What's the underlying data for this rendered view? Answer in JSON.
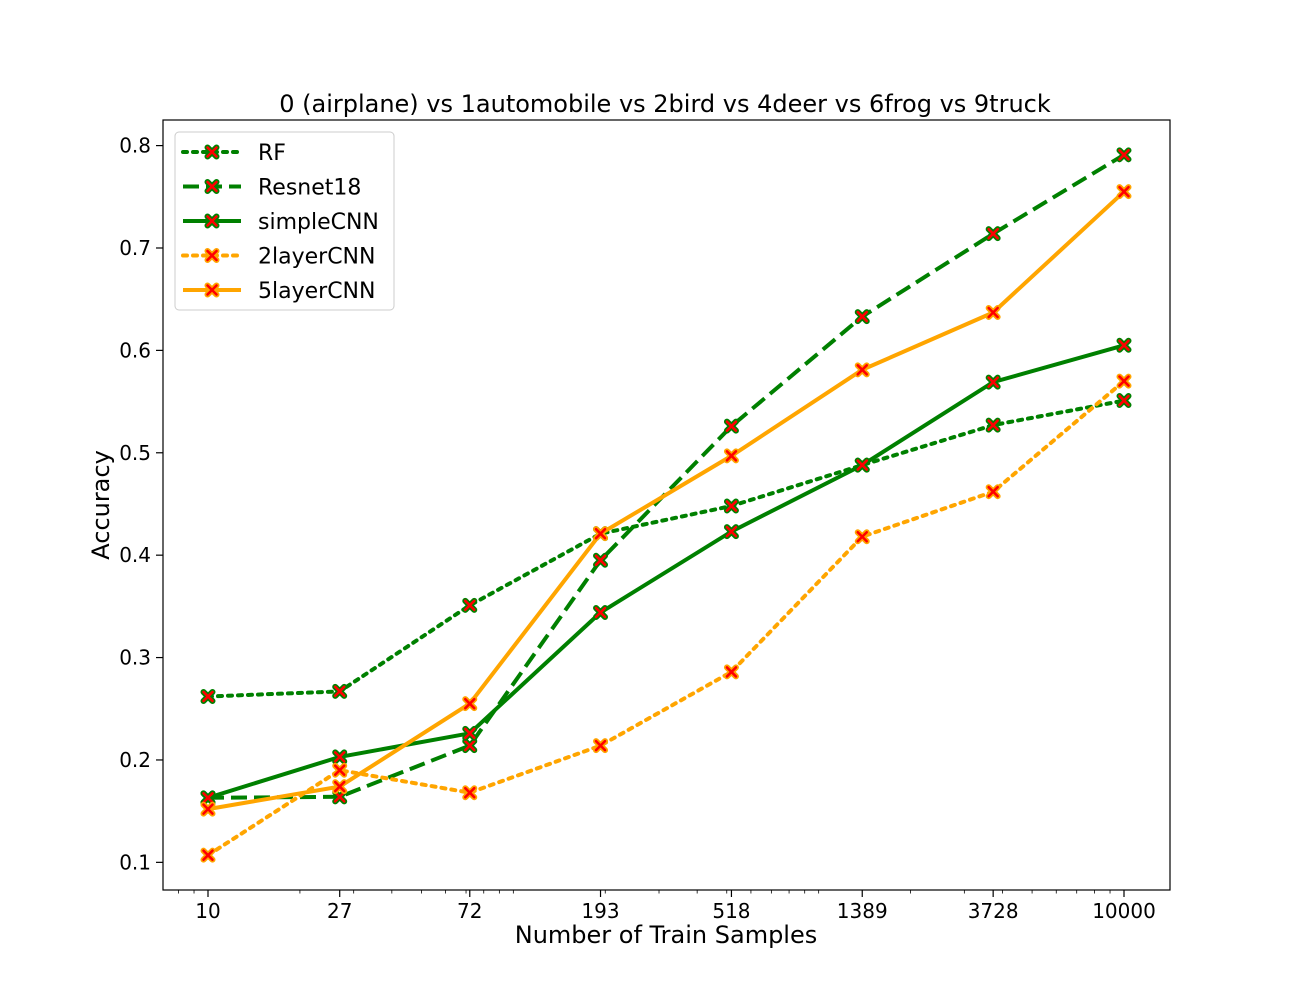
{
  "chart_data": {
    "type": "line",
    "title": "0 (airplane)  vs 1automobile vs 2bird vs 4deer vs 6frog vs 9truck",
    "xlabel": "Number of Train Samples",
    "ylabel": "Accuracy",
    "x_scale": "log",
    "x": [
      10,
      27,
      72,
      193,
      518,
      1389,
      3728,
      10000
    ],
    "x_tick_labels": [
      "10",
      "27",
      "72",
      "193",
      "518",
      "1389",
      "3728",
      "10000"
    ],
    "y_ticks": [
      0.1,
      0.2,
      0.3,
      0.4,
      0.5,
      0.6,
      0.7,
      0.8
    ],
    "y_tick_labels": [
      "0.1",
      "0.2",
      "0.3",
      "0.4",
      "0.5",
      "0.6",
      "0.7",
      "0.8"
    ],
    "ylim": [
      0.073,
      0.825
    ],
    "grid": false,
    "legend_position": "top-left",
    "series": [
      {
        "name": "RF",
        "color": "#008000",
        "dash": "dotted",
        "marker_color": "#008000",
        "values": [
          0.262,
          0.267,
          0.351,
          0.421,
          0.448,
          0.488,
          0.527,
          0.551
        ]
      },
      {
        "name": "Resnet18",
        "color": "#008000",
        "dash": "dashed",
        "marker_color": "#008000",
        "values": [
          0.163,
          0.164,
          0.214,
          0.395,
          0.526,
          0.633,
          0.714,
          0.791
        ]
      },
      {
        "name": "simpleCNN",
        "color": "#008000",
        "dash": "solid",
        "marker_color": "#008000",
        "values": [
          0.163,
          0.203,
          0.226,
          0.344,
          0.423,
          0.488,
          0.569,
          0.605
        ]
      },
      {
        "name": "2layerCNN",
        "color": "#ffa500",
        "dash": "dotted",
        "marker_color": "#ffa500",
        "values": [
          0.107,
          0.19,
          0.168,
          0.214,
          0.286,
          0.418,
          0.462,
          0.57
        ]
      },
      {
        "name": "5layerCNN",
        "color": "#ffa500",
        "dash": "solid",
        "marker_color": "#ffa500",
        "values": [
          0.152,
          0.174,
          0.255,
          0.421,
          0.497,
          0.581,
          0.637,
          0.755
        ]
      }
    ]
  }
}
